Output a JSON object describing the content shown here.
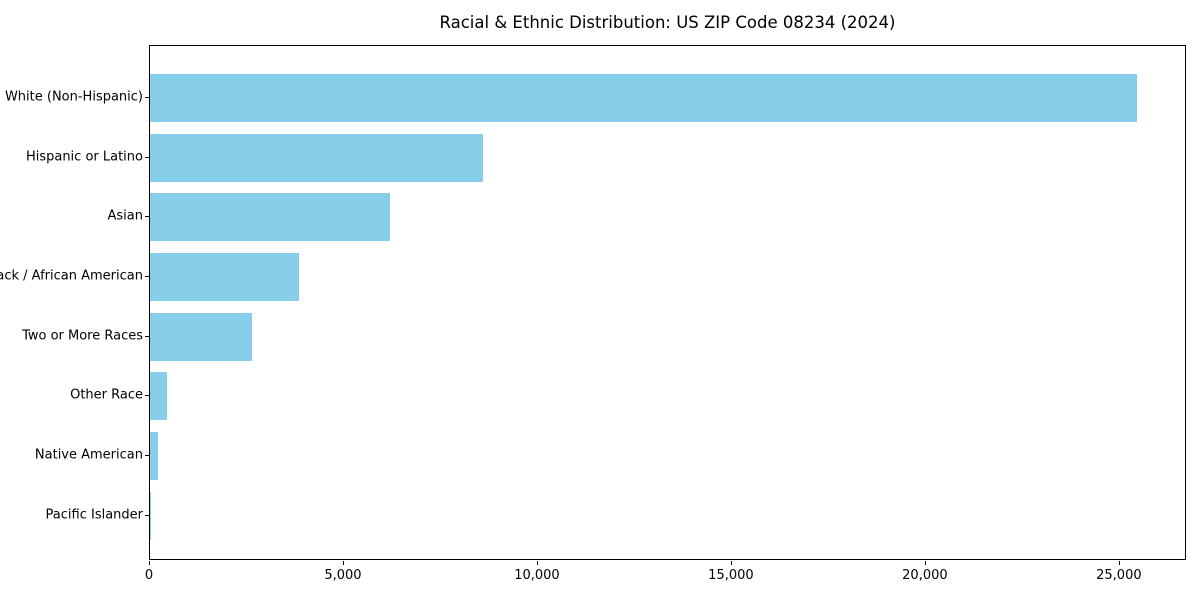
{
  "chart_data": {
    "type": "bar",
    "orientation": "horizontal",
    "title": "Racial & Ethnic Distribution: US ZIP Code 08234 (2024)",
    "categories": [
      "White (Non-Hispanic)",
      "Hispanic or Latino",
      "Asian",
      "Black / African American",
      "Two or More Races",
      "Other Race",
      "Native American",
      "Pacific Islander"
    ],
    "values": [
      25450,
      8580,
      6190,
      3840,
      2630,
      440,
      210,
      20
    ],
    "xlabel": "",
    "ylabel": "",
    "xlim": [
      0,
      26730
    ],
    "x_ticks": [
      0,
      5000,
      10000,
      15000,
      20000,
      25000
    ],
    "x_tick_labels": [
      "0",
      "5,000",
      "10,000",
      "15,000",
      "20,000",
      "25,000"
    ],
    "bar_color": "#87CEEB",
    "grid": false,
    "legend": null,
    "background_color": "#ffffff",
    "spine_color": "#000000"
  }
}
